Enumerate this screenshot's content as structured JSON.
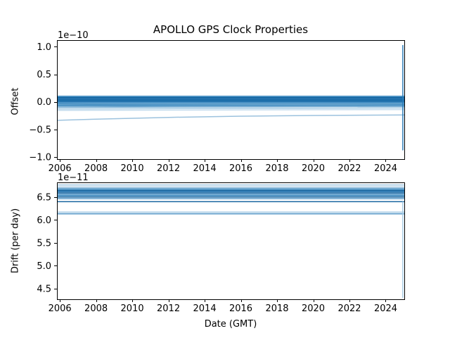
{
  "figure_title": "APOLLO GPS Clock Properties",
  "chart_data": [
    {
      "type": "line",
      "title": "APOLLO GPS Clock Properties",
      "xlabel": "",
      "ylabel": "Offset",
      "offset_text": "1e−10",
      "xlim": [
        2005.84,
        2025.03
      ],
      "ylim": [
        -1.04,
        1.12
      ],
      "grid": false,
      "legend": "none",
      "xticks": {
        "values": [
          2006,
          2008,
          2010,
          2012,
          2014,
          2016,
          2018,
          2020,
          2022,
          2024
        ],
        "labels": [
          "2006",
          "2008",
          "2010",
          "2012",
          "2014",
          "2016",
          "2018",
          "2020",
          "2022",
          "2024"
        ]
      },
      "yticks": {
        "values": [
          1.0,
          0.5,
          0.0,
          -0.5,
          -1.0
        ],
        "labels": [
          "1.0",
          "0.5",
          "0.0",
          "−0.5",
          "−1.0"
        ]
      },
      "series": [
        {
          "color": "#7fb2d6",
          "width": 1.5,
          "points": [
            [
              2005.84,
              0.105
            ],
            [
              2025.03,
              0.105
            ]
          ]
        },
        {
          "color": "#1f77b4",
          "width": 1.5,
          "points": [
            [
              2005.84,
              0.09
            ],
            [
              2025.03,
              0.09
            ]
          ]
        },
        {
          "color": "#18659f",
          "width": 1.5,
          "points": [
            [
              2005.84,
              0.075
            ],
            [
              2025.03,
              0.075
            ]
          ]
        },
        {
          "color": "#2b7cb8",
          "width": 1.5,
          "points": [
            [
              2005.84,
              0.06
            ],
            [
              2025.03,
              0.06
            ]
          ]
        },
        {
          "color": "#18659f",
          "width": 1.5,
          "points": [
            [
              2005.84,
              0.045
            ],
            [
              2025.03,
              0.045
            ]
          ]
        },
        {
          "color": "#1f77b4",
          "width": 1.5,
          "points": [
            [
              2005.84,
              0.03
            ],
            [
              2025.03,
              0.03
            ]
          ]
        },
        {
          "color": "#18659f",
          "width": 1.5,
          "points": [
            [
              2005.84,
              0.015
            ],
            [
              2025.03,
              0.015
            ]
          ]
        },
        {
          "color": "#2b7cb8",
          "width": 1.5,
          "points": [
            [
              2005.84,
              0.0
            ],
            [
              2025.03,
              0.0
            ]
          ]
        },
        {
          "color": "#3d8ac0",
          "width": 1.5,
          "points": [
            [
              2005.84,
              -0.02
            ],
            [
              2025.03,
              -0.015
            ]
          ]
        },
        {
          "color": "#5b9cc9",
          "width": 1.5,
          "points": [
            [
              2005.84,
              -0.04
            ],
            [
              2025.03,
              -0.035
            ]
          ]
        },
        {
          "color": "#3d8ac0",
          "width": 1.5,
          "points": [
            [
              2005.84,
              -0.06
            ],
            [
              2025.03,
              -0.055
            ]
          ]
        },
        {
          "color": "#5b9cc9",
          "width": 1.5,
          "points": [
            [
              2005.84,
              -0.08
            ],
            [
              2025.03,
              -0.07
            ]
          ]
        },
        {
          "color": "#7fb2d6",
          "width": 1.5,
          "points": [
            [
              2005.84,
              -0.1
            ],
            [
              2025.03,
              -0.085
            ]
          ]
        },
        {
          "color": "#a5cae3",
          "width": 1.5,
          "points": [
            [
              2005.84,
              -0.13
            ],
            [
              2025.03,
              -0.11
            ]
          ]
        },
        {
          "color": "#c5dcee",
          "width": 1.5,
          "points": [
            [
              2005.84,
              -0.155
            ],
            [
              2025.03,
              -0.14
            ]
          ]
        },
        {
          "color": "#9cc2de",
          "width": 1.5,
          "points": [
            [
              2005.84,
              -0.335
            ],
            [
              2008,
              -0.314
            ],
            [
              2012,
              -0.282
            ],
            [
              2016,
              -0.26
            ],
            [
              2020,
              -0.248
            ],
            [
              2025.03,
              -0.238
            ]
          ]
        },
        {
          "color": "#2b7cb8",
          "width": 1.5,
          "points": [
            [
              2024.95,
              1.03
            ],
            [
              2024.95,
              -0.88
            ]
          ]
        }
      ]
    },
    {
      "type": "line",
      "title": "",
      "xlabel": "Date (GMT)",
      "ylabel": "Drift (per day)",
      "offset_text": "1e−11",
      "xlim": [
        2005.84,
        2025.03
      ],
      "ylim": [
        4.27,
        6.82
      ],
      "grid": false,
      "legend": "none",
      "xticks": {
        "values": [
          2006,
          2008,
          2010,
          2012,
          2014,
          2016,
          2018,
          2020,
          2022,
          2024
        ],
        "labels": [
          "2006",
          "2008",
          "2010",
          "2012",
          "2014",
          "2016",
          "2018",
          "2020",
          "2022",
          "2024"
        ]
      },
      "yticks": {
        "values": [
          6.5,
          6.0,
          5.5,
          5.0,
          4.5
        ],
        "labels": [
          "6.5",
          "6.0",
          "5.5",
          "5.0",
          "4.5"
        ]
      },
      "series": [
        {
          "color": "#a5cae3",
          "width": 1.5,
          "points": [
            [
              2005.84,
              6.765
            ],
            [
              2025.03,
              6.765
            ]
          ]
        },
        {
          "color": "#c5dcee",
          "width": 1.5,
          "points": [
            [
              2005.84,
              6.73
            ],
            [
              2025.03,
              6.73
            ]
          ]
        },
        {
          "color": "#5b9cc9",
          "width": 1.5,
          "points": [
            [
              2005.84,
              6.695
            ],
            [
              2025.03,
              6.695
            ]
          ]
        },
        {
          "color": "#1f77b4",
          "width": 1.5,
          "points": [
            [
              2005.84,
              6.665
            ],
            [
              2025.03,
              6.665
            ]
          ]
        },
        {
          "color": "#18659f",
          "width": 1.5,
          "points": [
            [
              2005.84,
              6.64
            ],
            [
              2025.03,
              6.64
            ]
          ]
        },
        {
          "color": "#2b7cb8",
          "width": 1.5,
          "points": [
            [
              2005.84,
              6.615
            ],
            [
              2025.03,
              6.615
            ]
          ]
        },
        {
          "color": "#18659f",
          "width": 1.5,
          "points": [
            [
              2005.84,
              6.59
            ],
            [
              2025.03,
              6.59
            ]
          ]
        },
        {
          "color": "#3d8ac0",
          "width": 1.5,
          "points": [
            [
              2005.84,
              6.56
            ],
            [
              2025.03,
              6.56
            ]
          ]
        },
        {
          "color": "#1f77b4",
          "width": 1.5,
          "points": [
            [
              2005.84,
              6.53
            ],
            [
              2025.03,
              6.53
            ]
          ]
        },
        {
          "color": "#18659f",
          "width": 1.5,
          "points": [
            [
              2005.84,
              6.5
            ],
            [
              2025.03,
              6.5
            ]
          ]
        },
        {
          "color": "#5b9cc9",
          "width": 1.5,
          "points": [
            [
              2005.84,
              6.465
            ],
            [
              2025.03,
              6.465
            ]
          ]
        },
        {
          "color": "#18659f",
          "width": 1.5,
          "points": [
            [
              2005.84,
              6.4
            ],
            [
              2025.03,
              6.4
            ]
          ]
        },
        {
          "color": "#a5cae3",
          "width": 1.5,
          "points": [
            [
              2005.84,
              6.17
            ],
            [
              2025.03,
              6.17
            ]
          ]
        },
        {
          "color": "#4a90c4",
          "width": 1.5,
          "points": [
            [
              2005.84,
              6.135
            ],
            [
              2025.03,
              6.135
            ]
          ]
        },
        {
          "color": "#a5cae3",
          "width": 1.5,
          "points": [
            [
              2024.95,
              6.4
            ],
            [
              2024.95,
              4.3
            ]
          ]
        }
      ]
    }
  ]
}
